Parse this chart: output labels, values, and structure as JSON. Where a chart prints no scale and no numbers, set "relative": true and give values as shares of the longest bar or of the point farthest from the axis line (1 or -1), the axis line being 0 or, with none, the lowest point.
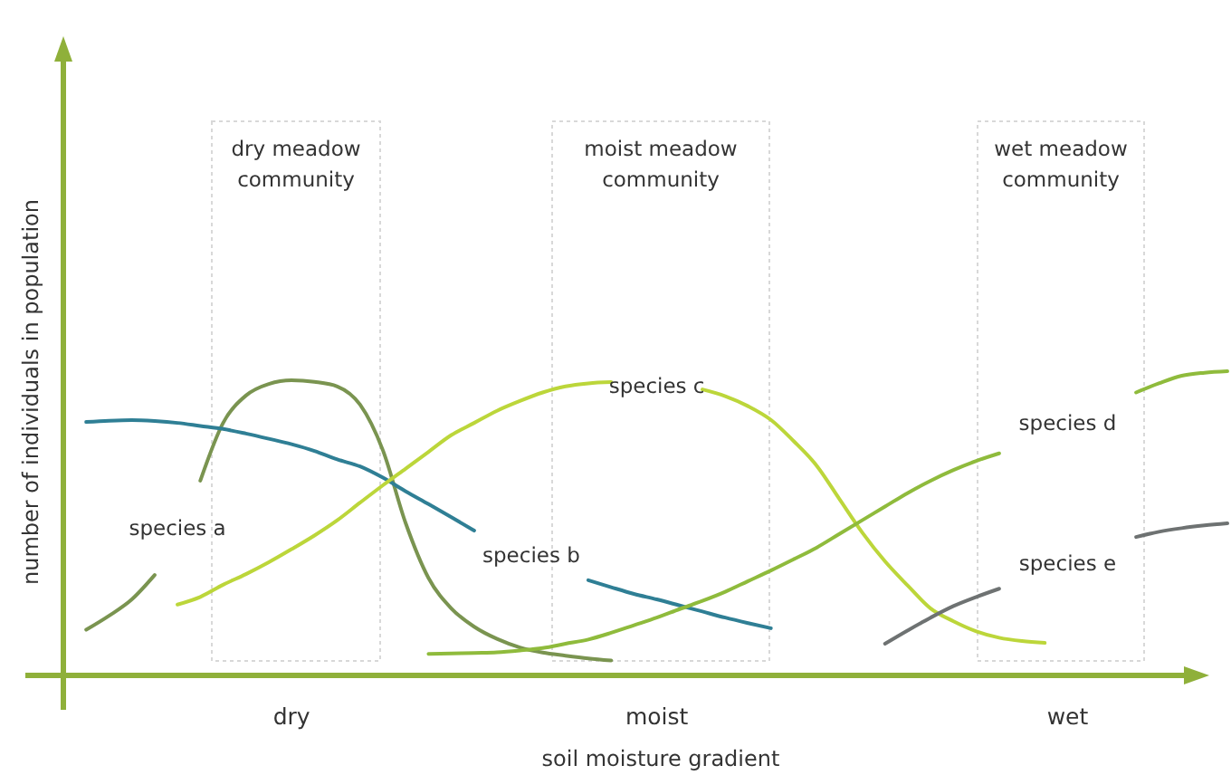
{
  "chart_data": {
    "type": "line",
    "relative": true,
    "xlabel": "soil moisture gradient",
    "ylabel": "number of individuals in population",
    "categories": [
      null,
      null,
      null,
      null,
      null,
      null,
      null,
      null,
      null,
      null,
      "dry",
      null,
      null,
      null,
      null,
      null,
      null,
      null,
      null,
      null,
      null,
      null,
      null,
      null,
      null,
      null,
      "moist",
      null,
      null,
      null,
      null,
      null,
      null,
      null,
      null,
      null,
      null,
      null,
      null,
      null,
      null,
      null,
      null,
      null,
      "wet",
      null,
      null,
      null,
      null,
      null,
      null,
      null
    ],
    "annotations": [
      "dry meadow community",
      "moist meadow community",
      "wet meadow community"
    ],
    "legend": false,
    "grid": false,
    "line_style": "solid",
    "marker": "none",
    "series": [
      {
        "name": "species a",
        "color": "#7a9450",
        "values": [
          null,
          0.15,
          0.196,
          0.25,
          0.33,
          null,
          0.64,
          0.83,
          0.92,
          0.958,
          0.97,
          0.965,
          0.95,
          0.89,
          0.74,
          0.5,
          0.32,
          0.22,
          0.16,
          0.12,
          0.092,
          0.075,
          0.065,
          0.056,
          0.049,
          null,
          null,
          null,
          null,
          null,
          null,
          null,
          null,
          null,
          null,
          null,
          null,
          null,
          null,
          null,
          null,
          null,
          null,
          null,
          null,
          null,
          null,
          null,
          null,
          null,
          null,
          null
        ]
      },
      {
        "name": "species b",
        "color": "#2f7f95",
        "values": [
          null,
          0.833,
          0.837,
          0.839,
          0.836,
          0.83,
          0.82,
          0.81,
          0.795,
          0.778,
          0.76,
          0.738,
          0.71,
          0.687,
          0.65,
          0.605,
          0.563,
          0.52,
          0.476,
          null,
          null,
          null,
          null,
          0.313,
          0.29,
          0.268,
          0.25,
          0.23,
          0.21,
          0.19,
          0.172,
          0.155,
          null,
          null,
          null,
          null,
          null,
          null,
          null,
          null,
          null,
          null,
          null,
          null,
          null,
          null,
          null,
          null,
          null,
          null,
          null,
          null
        ]
      },
      {
        "name": "species c",
        "color": "#bcd63a",
        "values": [
          null,
          null,
          null,
          null,
          null,
          0.233,
          0.258,
          0.298,
          0.333,
          0.372,
          0.415,
          0.46,
          0.51,
          0.568,
          0.625,
          0.68,
          0.735,
          0.79,
          0.83,
          0.87,
          0.902,
          0.93,
          0.95,
          0.96,
          0.964,
          null,
          null,
          null,
          0.94,
          0.918,
          0.885,
          0.84,
          0.77,
          0.69,
          0.58,
          0.47,
          0.375,
          0.295,
          0.22,
          0.178,
          0.145,
          0.124,
          0.113,
          0.107,
          null,
          null,
          null,
          null,
          null,
          null,
          null,
          null
        ]
      },
      {
        "name": "species d",
        "color": "#8fbb3c",
        "values": [
          null,
          null,
          null,
          null,
          null,
          null,
          null,
          null,
          null,
          null,
          null,
          null,
          null,
          null,
          null,
          null,
          0.071,
          0.072,
          0.074,
          0.076,
          0.082,
          0.09,
          0.104,
          0.118,
          0.14,
          0.165,
          0.19,
          0.218,
          0.245,
          0.275,
          0.31,
          0.345,
          0.382,
          0.42,
          0.465,
          0.51,
          0.555,
          0.6,
          0.64,
          0.675,
          0.705,
          0.73,
          null,
          null,
          null,
          null,
          null,
          0.93,
          0.96,
          0.985,
          0.995,
          1.0
        ]
      },
      {
        "name": "species e",
        "color": "#6e7272",
        "values": [
          null,
          null,
          null,
          null,
          null,
          null,
          null,
          null,
          null,
          null,
          null,
          null,
          null,
          null,
          null,
          null,
          null,
          null,
          null,
          null,
          null,
          null,
          null,
          null,
          null,
          null,
          null,
          null,
          null,
          null,
          null,
          null,
          null,
          null,
          null,
          null,
          0.104,
          0.148,
          0.19,
          0.228,
          0.258,
          0.285,
          null,
          null,
          null,
          null,
          null,
          0.455,
          0.472,
          0.484,
          0.493,
          0.5
        ]
      }
    ]
  }
}
